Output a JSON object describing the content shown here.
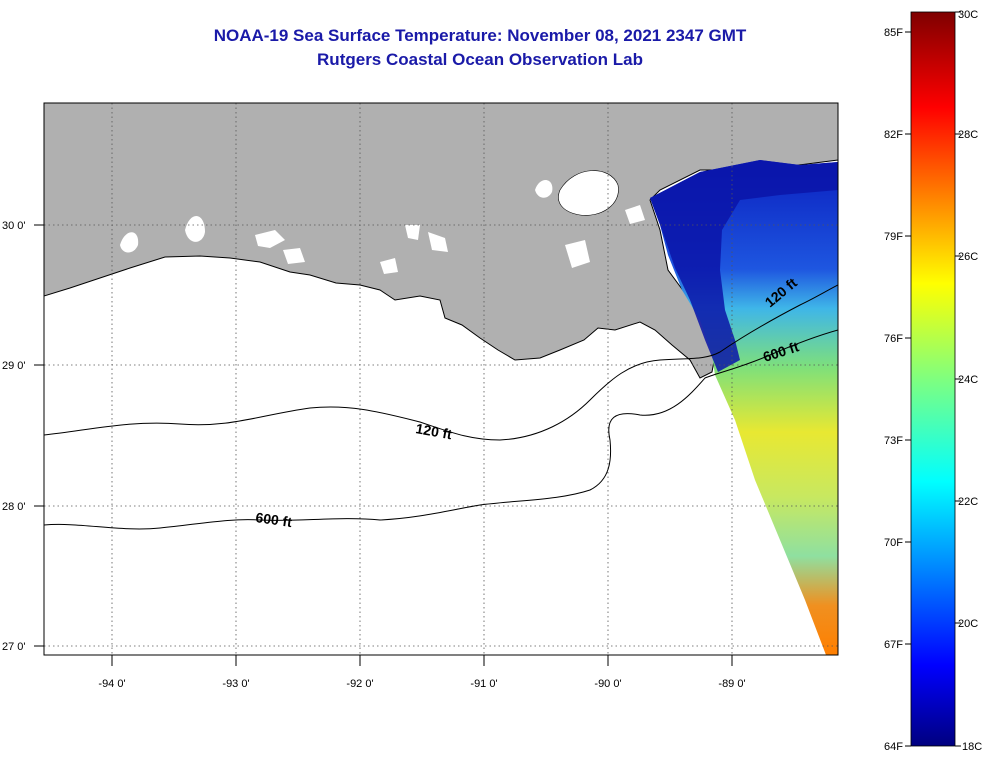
{
  "title": "NOAA-19 Sea Surface Temperature:  November 08, 2021 2347 GMT",
  "subtitle": "Rutgers Coastal Ocean Observation Lab",
  "map": {
    "lon_ticks": [
      "-94 0'",
      "-93 0'",
      "-92 0'",
      "-91 0'",
      "-90 0'",
      "-89 0'"
    ],
    "lat_ticks": [
      "30 0'",
      "29 0'",
      "28 0'",
      "27 0'"
    ],
    "contours": [
      {
        "label": "120 ft",
        "depth_ft": 120
      },
      {
        "label": "600 ft",
        "depth_ft": 600
      }
    ],
    "contour_labels_east": [
      "120 ft",
      "600 ft"
    ],
    "colors": {
      "land": "#b0b0b0",
      "cloud": "#ffffff",
      "coast": "#000000",
      "grid": "#555555"
    }
  },
  "colorbar": {
    "fahrenheit_labels": [
      "85F",
      "82F",
      "79F",
      "76F",
      "73F",
      "70F",
      "67F",
      "64F"
    ],
    "celsius_labels": [
      "30C",
      "28C",
      "26C",
      "24C",
      "22C",
      "20C",
      "18C"
    ],
    "range_c": [
      18,
      30
    ],
    "colormap": "jet"
  }
}
